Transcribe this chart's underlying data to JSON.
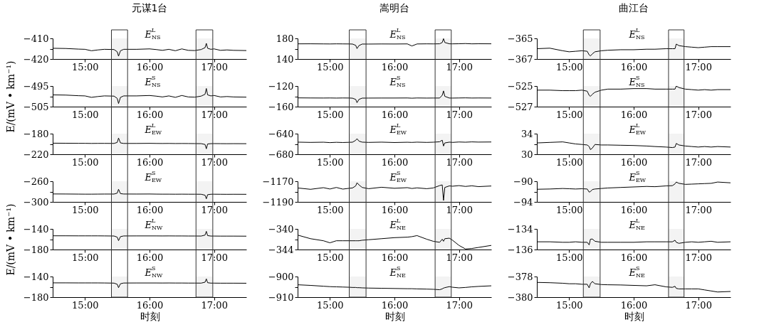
{
  "chart_data": [
    {
      "type": "line",
      "title": "元谋1台",
      "x": [
        14.5,
        14.7,
        14.9,
        15.0,
        15.1,
        15.2,
        15.3,
        15.45,
        15.5,
        15.52,
        15.55,
        15.6,
        15.8,
        16.0,
        16.1,
        16.2,
        16.3,
        16.4,
        16.5,
        16.6,
        16.7,
        16.8,
        16.86,
        16.88,
        16.9,
        16.95,
        17.0,
        17.1,
        17.2,
        17.3,
        17.5
      ],
      "xlim": [
        14.5,
        17.5
      ],
      "xticks": [
        {
          "value": 15,
          "label": "15:00"
        },
        {
          "value": 16,
          "label": "16:00"
        },
        {
          "value": 17,
          "label": "17:00"
        }
      ],
      "ylim": [
        -420,
        -410
      ],
      "yticks": [
        -420,
        {
          "value": -415,
          "label": null
        },
        -410
      ],
      "bands": [
        {
          "axis": "x",
          "from": 15.41,
          "to": 15.66
        },
        {
          "axis": "x",
          "from": 16.72,
          "to": 16.98
        }
      ],
      "series": [
        {
          "name": "E$^{L}$$_{NS}$",
          "color": "#000000",
          "values": [
            -414.8,
            -414.9,
            -415.2,
            -415.3,
            -416.0,
            -415.6,
            -415.3,
            -415.4,
            -416.5,
            -418.6,
            -416.0,
            -415.3,
            -415.3,
            -415.1,
            -415.4,
            -415.8,
            -415.3,
            -416.0,
            -415.1,
            -415.8,
            -415.9,
            -415.4,
            -414.5,
            -412.4,
            -414.8,
            -415.3,
            -415.1,
            -415.8,
            -415.6,
            -415.8,
            -415.9
          ]
        }
      ]
    },
    {
      "type": "line",
      "ylabel": "E/(mV • km⁻¹)",
      "x": [
        14.5,
        14.7,
        14.9,
        15.0,
        15.1,
        15.2,
        15.3,
        15.45,
        15.5,
        15.52,
        15.55,
        15.6,
        15.8,
        16.0,
        16.1,
        16.2,
        16.3,
        16.4,
        16.5,
        16.6,
        16.7,
        16.8,
        16.86,
        16.88,
        16.9,
        16.95,
        17.0,
        17.1,
        17.2,
        17.3,
        17.5
      ],
      "xlim": [
        14.5,
        17.5
      ],
      "xticks": [
        {
          "value": 15,
          "label": "15:00"
        },
        {
          "value": 16,
          "label": "16:00"
        },
        {
          "value": 17,
          "label": "17:00"
        }
      ],
      "ylim": [
        -505,
        -495
      ],
      "yticks": [
        -505,
        {
          "value": -500,
          "label": null
        },
        -495
      ],
      "bands": [
        {
          "axis": "x",
          "from": 15.41,
          "to": 15.66
        },
        {
          "axis": "x",
          "from": 16.72,
          "to": 16.98
        }
      ],
      "series": [
        {
          "name": "E$^{S}$$_{NS}$",
          "color": "#000000",
          "values": [
            -499.3,
            -499.4,
            -499.7,
            -499.8,
            -500.5,
            -500.1,
            -499.8,
            -499.9,
            -501.0,
            -503.5,
            -500.5,
            -499.8,
            -499.8,
            -499.6,
            -499.9,
            -500.3,
            -499.8,
            -500.5,
            -499.6,
            -500.3,
            -500.4,
            -499.9,
            -499.0,
            -496.2,
            -499.3,
            -499.8,
            -499.6,
            -500.3,
            -500.1,
            -500.3,
            -500.4
          ]
        }
      ]
    },
    {
      "type": "line",
      "x": [
        14.5,
        14.7,
        14.9,
        15.0,
        15.1,
        15.2,
        15.3,
        15.45,
        15.5,
        15.52,
        15.55,
        15.6,
        15.8,
        16.0,
        16.1,
        16.2,
        16.3,
        16.4,
        16.5,
        16.6,
        16.7,
        16.8,
        16.86,
        16.88,
        16.9,
        16.95,
        17.0,
        17.1,
        17.2,
        17.3,
        17.5
      ],
      "xlim": [
        14.5,
        17.5
      ],
      "xticks": [
        {
          "value": 15,
          "label": "15:00"
        },
        {
          "value": 16,
          "label": "16:00"
        },
        {
          "value": 17,
          "label": "17:00"
        }
      ],
      "ylim": [
        -220,
        -180
      ],
      "yticks": [
        -220,
        {
          "value": -200,
          "label": null
        },
        -180
      ],
      "bands": [
        {
          "axis": "x",
          "from": 15.41,
          "to": 15.66
        },
        {
          "axis": "x",
          "from": 16.72,
          "to": 16.98
        }
      ],
      "series": [
        {
          "name": "E$^{L}$$_{EW}$",
          "color": "#000000",
          "values": [
            -198.5,
            -198.6,
            -198.8,
            -198.8,
            -199.0,
            -198.9,
            -198.9,
            -199.0,
            -197.0,
            -188.5,
            -198.0,
            -199.0,
            -199.0,
            -198.8,
            -199.0,
            -199.1,
            -199.0,
            -199.2,
            -199.1,
            -199.2,
            -199.3,
            -199.4,
            -201.0,
            -209.4,
            -200.0,
            -199.4,
            -199.3,
            -199.4,
            -199.5,
            -199.4,
            -199.5
          ]
        }
      ]
    },
    {
      "type": "line",
      "x": [
        14.5,
        14.7,
        14.9,
        15.0,
        15.1,
        15.2,
        15.3,
        15.45,
        15.5,
        15.52,
        15.55,
        15.6,
        15.8,
        16.0,
        16.1,
        16.2,
        16.3,
        16.4,
        16.5,
        16.6,
        16.7,
        16.8,
        16.86,
        16.88,
        16.9,
        16.95,
        17.0,
        17.1,
        17.2,
        17.3,
        17.5
      ],
      "xlim": [
        14.5,
        17.5
      ],
      "xticks": [
        {
          "value": 15,
          "label": "15:00"
        },
        {
          "value": 16,
          "label": "16:00"
        },
        {
          "value": 17,
          "label": "17:00"
        }
      ],
      "ylim": [
        -300,
        -260
      ],
      "yticks": [
        -300,
        {
          "value": -280,
          "label": null
        },
        -260
      ],
      "bands": [
        {
          "axis": "x",
          "from": 15.41,
          "to": 15.66
        },
        {
          "axis": "x",
          "from": 16.72,
          "to": 16.98
        }
      ],
      "series": [
        {
          "name": "E$^{S}$$_{EW}$",
          "color": "#000000",
          "values": [
            -284.6,
            -284.7,
            -284.9,
            -285.0,
            -285.0,
            -284.9,
            -284.8,
            -284.8,
            -283.0,
            -275.5,
            -284.0,
            -284.7,
            -284.8,
            -284.7,
            -284.9,
            -285.0,
            -285.0,
            -285.1,
            -285.0,
            -285.1,
            -285.1,
            -285.2,
            -287.0,
            -294.0,
            -286.0,
            -285.2,
            -285.1,
            -285.2,
            -285.3,
            -285.2,
            -285.3
          ]
        }
      ]
    },
    {
      "type": "line",
      "ylabel": "E/(mV • km⁻¹)",
      "x": [
        14.5,
        14.7,
        14.9,
        15.0,
        15.1,
        15.2,
        15.3,
        15.45,
        15.5,
        15.52,
        15.55,
        15.6,
        15.8,
        16.0,
        16.1,
        16.2,
        16.3,
        16.4,
        16.5,
        16.6,
        16.7,
        16.8,
        16.86,
        16.88,
        16.9,
        16.95,
        17.0,
        17.1,
        17.2,
        17.3,
        17.5
      ],
      "xlim": [
        14.5,
        17.5
      ],
      "xticks": [
        {
          "value": 15,
          "label": "15:00"
        },
        {
          "value": 16,
          "label": "16:00"
        },
        {
          "value": 17,
          "label": "17:00"
        }
      ],
      "ylim": [
        -180,
        -140
      ],
      "yticks": [
        -180,
        {
          "value": -160,
          "label": null
        },
        -140
      ],
      "bands": [
        {
          "axis": "x",
          "from": 15.41,
          "to": 15.66
        },
        {
          "axis": "x",
          "from": 16.72,
          "to": 16.98
        }
      ],
      "series": [
        {
          "name": "E$^{L}$$_{NW}$",
          "color": "#000000",
          "values": [
            -153.4,
            -153.4,
            -153.5,
            -153.5,
            -153.5,
            -153.5,
            -153.6,
            -153.8,
            -156.0,
            -162.8,
            -155.0,
            -153.7,
            -153.6,
            -153.6,
            -153.6,
            -153.7,
            -153.6,
            -153.7,
            -153.7,
            -153.8,
            -153.8,
            -153.9,
            -152.0,
            -144.7,
            -153.0,
            -153.9,
            -153.9,
            -154.0,
            -154.0,
            -154.0,
            -154.1
          ]
        }
      ]
    },
    {
      "type": "line",
      "xlabel": "时刻",
      "x": [
        14.5,
        14.7,
        14.9,
        15.0,
        15.1,
        15.2,
        15.3,
        15.45,
        15.5,
        15.52,
        15.55,
        15.6,
        15.8,
        16.0,
        16.1,
        16.2,
        16.3,
        16.4,
        16.5,
        16.6,
        16.7,
        16.8,
        16.86,
        16.88,
        16.9,
        16.95,
        17.0,
        17.1,
        17.2,
        17.3,
        17.5
      ],
      "xlim": [
        14.5,
        17.5
      ],
      "xticks": [
        {
          "value": 15,
          "label": "15:00"
        },
        {
          "value": 16,
          "label": "16:00"
        },
        {
          "value": 17,
          "label": "17:00"
        }
      ],
      "ylim": [
        -180,
        -140
      ],
      "yticks": [
        -180,
        {
          "value": -160,
          "label": null
        },
        -140
      ],
      "bands": [
        {
          "axis": "x",
          "from": 15.41,
          "to": 15.66
        },
        {
          "axis": "x",
          "from": 16.72,
          "to": 16.98
        }
      ],
      "series": [
        {
          "name": "E$^{S}$$_{NW}$",
          "color": "#000000",
          "values": [
            -152.3,
            -152.3,
            -152.4,
            -152.4,
            -152.4,
            -152.4,
            -152.5,
            -152.8,
            -155.0,
            -161.6,
            -154.0,
            -152.6,
            -152.5,
            -152.5,
            -152.5,
            -152.6,
            -152.5,
            -152.6,
            -152.6,
            -152.7,
            -152.7,
            -152.8,
            -151.0,
            -144.6,
            -152.0,
            -152.8,
            -152.8,
            -152.9,
            -152.9,
            -152.9,
            -153.0
          ]
        }
      ]
    },
    {
      "type": "line",
      "title": "嵩明台",
      "x": [
        14.5,
        14.7,
        14.9,
        15.0,
        15.1,
        15.2,
        15.3,
        15.35,
        15.4,
        15.42,
        15.45,
        15.5,
        15.6,
        15.8,
        16.0,
        16.2,
        16.27,
        16.35,
        16.5,
        16.6,
        16.7,
        16.74,
        16.76,
        16.78,
        16.85,
        16.9,
        17.0,
        17.1,
        17.2,
        17.3,
        17.5
      ],
      "xlim": [
        14.5,
        17.5
      ],
      "xticks": [
        {
          "value": 15,
          "label": "15:00"
        },
        {
          "value": 16,
          "label": "16:00"
        },
        {
          "value": 17,
          "label": "17:00"
        }
      ],
      "ylim": [
        140,
        180
      ],
      "yticks": [
        140,
        {
          "value": 160,
          "label": null
        },
        180
      ],
      "bands": [
        {
          "axis": "x",
          "from": 15.3,
          "to": 15.56
        },
        {
          "axis": "x",
          "from": 16.63,
          "to": 16.88
        }
      ],
      "series": [
        {
          "name": "E$^{L}$$_{NS}$",
          "color": "#000000",
          "values": [
            169.4,
            169.5,
            169.3,
            169.2,
            169.4,
            169.3,
            169.2,
            169.0,
            166.5,
            160.2,
            166.0,
            169.0,
            169.0,
            169.2,
            169.1,
            169.3,
            165.3,
            169.2,
            169.4,
            169.3,
            169.5,
            172.0,
            179.5,
            172.0,
            169.5,
            169.4,
            169.6,
            170.0,
            169.4,
            169.6,
            169.5
          ]
        }
      ]
    },
    {
      "type": "line",
      "x": [
        14.5,
        14.7,
        14.9,
        15.0,
        15.1,
        15.2,
        15.3,
        15.35,
        15.4,
        15.42,
        15.45,
        15.5,
        15.6,
        15.8,
        16.0,
        16.2,
        16.27,
        16.35,
        16.5,
        16.6,
        16.7,
        16.74,
        16.76,
        16.78,
        16.85,
        16.9,
        17.0,
        17.1,
        17.2,
        17.3,
        17.5
      ],
      "xlim": [
        14.5,
        17.5
      ],
      "xticks": [
        {
          "value": 15,
          "label": "15:00"
        },
        {
          "value": 16,
          "label": "16:00"
        },
        {
          "value": 17,
          "label": "17:00"
        }
      ],
      "ylim": [
        -160,
        -120
      ],
      "yticks": [
        -160,
        {
          "value": -140,
          "label": null
        },
        -120
      ],
      "bands": [
        {
          "axis": "x",
          "from": 15.3,
          "to": 15.56
        },
        {
          "axis": "x",
          "from": 16.63,
          "to": 16.88
        }
      ],
      "series": [
        {
          "name": "E$^{S}$$_{NS}$",
          "color": "#000000",
          "values": [
            -143.0,
            -143.2,
            -143.3,
            -143.2,
            -143.4,
            -143.2,
            -143.3,
            -143.6,
            -146.0,
            -152.3,
            -146.0,
            -143.5,
            -143.4,
            -143.3,
            -143.3,
            -143.2,
            -143.6,
            -143.2,
            -143.4,
            -143.3,
            -143.3,
            -138.0,
            -129.5,
            -140.0,
            -143.3,
            -143.4,
            -143.2,
            -143.0,
            -143.3,
            -143.2,
            -143.3
          ]
        }
      ]
    },
    {
      "type": "line",
      "x": [
        14.5,
        14.7,
        14.9,
        15.0,
        15.1,
        15.2,
        15.3,
        15.35,
        15.4,
        15.42,
        15.45,
        15.5,
        15.6,
        15.8,
        16.0,
        16.2,
        16.27,
        16.35,
        16.5,
        16.6,
        16.7,
        16.74,
        16.76,
        16.78,
        16.85,
        16.9,
        17.0,
        17.1,
        17.2,
        17.3,
        17.5
      ],
      "xlim": [
        14.5,
        17.5
      ],
      "xticks": [
        {
          "value": 15,
          "label": "15:00"
        },
        {
          "value": 16,
          "label": "16:00"
        },
        {
          "value": 17,
          "label": "17:00"
        }
      ],
      "ylim": [
        -680,
        -640
      ],
      "yticks": [
        -680,
        {
          "value": -660,
          "label": null
        },
        -640
      ],
      "bands": [
        {
          "axis": "x",
          "from": 15.3,
          "to": 15.56
        },
        {
          "axis": "x",
          "from": 16.63,
          "to": 16.88
        }
      ],
      "series": [
        {
          "name": "E$^{L}$$_{EW}$",
          "color": "#000000",
          "values": [
            -656.5,
            -657.0,
            -656.6,
            -657.4,
            -656.8,
            -657.2,
            -656.8,
            -656.6,
            -653.0,
            -649.7,
            -654.5,
            -656.5,
            -657.0,
            -656.5,
            -657.2,
            -656.7,
            -657.0,
            -656.5,
            -657.0,
            -656.6,
            -655.8,
            -652.6,
            -664.0,
            -658.0,
            -656.5,
            -657.0,
            -656.2,
            -656.6,
            -656.0,
            -656.4,
            -656.2
          ]
        }
      ]
    },
    {
      "type": "line",
      "x": [
        14.5,
        14.7,
        14.9,
        15.0,
        15.1,
        15.2,
        15.3,
        15.35,
        15.4,
        15.42,
        15.45,
        15.5,
        15.6,
        15.8,
        16.0,
        16.2,
        16.27,
        16.35,
        16.5,
        16.6,
        16.7,
        16.74,
        16.76,
        16.78,
        16.85,
        16.9,
        17.0,
        17.1,
        17.2,
        17.3,
        17.5
      ],
      "xlim": [
        14.5,
        17.5
      ],
      "xticks": [
        {
          "value": 15,
          "label": "15:00"
        },
        {
          "value": 16,
          "label": "16:00"
        },
        {
          "value": 17,
          "label": "17:00"
        }
      ],
      "ylim": [
        -1190,
        -1170
      ],
      "yticks": [
        -1190,
        {
          "value": -1180,
          "label": null
        },
        -1170
      ],
      "bands": [
        {
          "axis": "x",
          "from": 15.3,
          "to": 15.56
        },
        {
          "axis": "x",
          "from": 16.63,
          "to": 16.88
        }
      ],
      "series": [
        {
          "name": "E$^{S}$$_{EW}$",
          "color": "#000000",
          "values": [
            -1176.5,
            -1177.8,
            -1176.2,
            -1177.5,
            -1176.0,
            -1177.6,
            -1176.8,
            -1176.5,
            -1174.5,
            -1171.4,
            -1173.5,
            -1176.0,
            -1177.2,
            -1175.8,
            -1176.8,
            -1176.2,
            -1177.0,
            -1176.4,
            -1177.2,
            -1176.5,
            -1174.2,
            -1173.5,
            -1188.6,
            -1176.0,
            -1174.5,
            -1174.8,
            -1174.2,
            -1175.0,
            -1174.4,
            -1175.2,
            -1174.6
          ]
        }
      ]
    },
    {
      "type": "line",
      "x": [
        14.5,
        14.7,
        14.9,
        15.0,
        15.1,
        15.2,
        15.3,
        15.35,
        15.4,
        15.42,
        15.45,
        15.5,
        15.6,
        15.8,
        16.0,
        16.2,
        16.27,
        16.35,
        16.5,
        16.6,
        16.7,
        16.74,
        16.76,
        16.78,
        16.85,
        16.9,
        17.0,
        17.1,
        17.2,
        17.3,
        17.5
      ],
      "xlim": [
        14.5,
        17.5
      ],
      "xticks": [
        {
          "value": 15,
          "label": "15:00"
        },
        {
          "value": 16,
          "label": "16:00"
        },
        {
          "value": 17,
          "label": "17:00"
        }
      ],
      "ylim": [
        -344,
        -340
      ],
      "yticks": [
        -344,
        {
          "value": -342,
          "label": null
        },
        -340
      ],
      "bands": [
        {
          "axis": "x",
          "from": 15.3,
          "to": 15.56
        },
        {
          "axis": "x",
          "from": 16.63,
          "to": 16.88
        }
      ],
      "series": [
        {
          "name": "E$^{L}$$_{NE}$",
          "color": "#000000",
          "values": [
            -341.2,
            -341.9,
            -342.3,
            -342.7,
            -342.3,
            -342.3,
            -342.3,
            -342.3,
            -342.3,
            -342.3,
            -342.3,
            -342.2,
            -342.1,
            -341.9,
            -341.7,
            -341.6,
            -341.5,
            -341.3,
            -342.0,
            -342.4,
            -342.6,
            -342.0,
            -342.4,
            -341.9,
            -341.8,
            -342.2,
            -343.2,
            -343.9,
            -343.8,
            -343.6,
            -343.2
          ]
        }
      ]
    },
    {
      "type": "line",
      "xlabel": "时刻",
      "x": [
        14.5,
        14.7,
        14.9,
        15.0,
        15.1,
        15.2,
        15.3,
        15.35,
        15.4,
        15.42,
        15.45,
        15.5,
        15.6,
        15.8,
        16.0,
        16.2,
        16.27,
        16.35,
        16.5,
        16.6,
        16.7,
        16.74,
        16.76,
        16.78,
        16.85,
        16.9,
        17.0,
        17.1,
        17.2,
        17.3,
        17.5
      ],
      "xlim": [
        14.5,
        17.5
      ],
      "xticks": [
        {
          "value": 15,
          "label": "15:00"
        },
        {
          "value": 16,
          "label": "16:00"
        },
        {
          "value": 17,
          "label": "17:00"
        }
      ],
      "ylim": [
        -910,
        -900
      ],
      "yticks": [
        -910,
        {
          "value": -905,
          "label": null
        },
        -900
      ],
      "bands": [
        {
          "axis": "x",
          "from": 15.3,
          "to": 15.56
        },
        {
          "axis": "x",
          "from": 16.63,
          "to": 16.88
        }
      ],
      "series": [
        {
          "name": "E$^{S}$$_{NE}$",
          "color": "#000000",
          "values": [
            -904.0,
            -904.3,
            -904.7,
            -904.9,
            -905.0,
            -905.1,
            -905.2,
            -905.3,
            -905.3,
            -905.4,
            -905.4,
            -905.5,
            -905.6,
            -905.7,
            -905.8,
            -905.9,
            -905.9,
            -906.0,
            -906.1,
            -906.2,
            -906.4,
            -906.0,
            -905.6,
            -905.4,
            -904.9,
            -905.2,
            -905.5,
            -905.3,
            -905.0,
            -904.8,
            -904.5
          ]
        }
      ]
    },
    {
      "type": "line",
      "title": "曲江台",
      "x": [
        14.5,
        14.7,
        14.9,
        15.0,
        15.1,
        15.2,
        15.28,
        15.31,
        15.33,
        15.36,
        15.4,
        15.5,
        15.6,
        15.8,
        16.0,
        16.2,
        16.33,
        16.5,
        16.6,
        16.64,
        16.66,
        16.7,
        16.8,
        16.9,
        17.0,
        17.1,
        17.2,
        17.3,
        17.5
      ],
      "xlim": [
        14.5,
        17.5
      ],
      "xticks": [
        {
          "value": 15,
          "label": "15:00"
        },
        {
          "value": 16,
          "label": "16:00"
        },
        {
          "value": 17,
          "label": "17:00"
        }
      ],
      "ylim": [
        -367,
        -365
      ],
      "yticks": [
        -367,
        -365
      ],
      "bands": [
        {
          "axis": "x",
          "from": 15.22,
          "to": 15.48
        },
        {
          "axis": "x",
          "from": 16.54,
          "to": 16.78
        }
      ],
      "series": [
        {
          "name": "E$^{L}$$_{NS}$",
          "color": "#000000",
          "values": [
            -366.0,
            -365.95,
            -366.2,
            -366.3,
            -366.25,
            -366.2,
            -366.25,
            -366.6,
            -366.7,
            -366.5,
            -366.3,
            -366.2,
            -366.15,
            -366.1,
            -366.1,
            -366.05,
            -366.05,
            -366.0,
            -366.0,
            -366.0,
            -365.55,
            -365.7,
            -365.8,
            -365.85,
            -365.9,
            -365.85,
            -365.8,
            -365.8,
            -365.8
          ]
        }
      ]
    },
    {
      "type": "line",
      "x": [
        14.5,
        14.7,
        14.9,
        15.0,
        15.1,
        15.2,
        15.28,
        15.31,
        15.33,
        15.36,
        15.4,
        15.5,
        15.6,
        15.8,
        16.0,
        16.2,
        16.33,
        16.5,
        16.6,
        16.64,
        16.66,
        16.7,
        16.8,
        16.9,
        17.0,
        17.1,
        17.2,
        17.3,
        17.5
      ],
      "xlim": [
        14.5,
        17.5
      ],
      "xticks": [
        {
          "value": 15,
          "label": "15:00"
        },
        {
          "value": 16,
          "label": "16:00"
        },
        {
          "value": 17,
          "label": "17:00"
        }
      ],
      "ylim": [
        -527,
        -525
      ],
      "yticks": [
        -527,
        -525
      ],
      "bands": [
        {
          "axis": "x",
          "from": 15.22,
          "to": 15.48
        },
        {
          "axis": "x",
          "from": 16.54,
          "to": 16.78
        }
      ],
      "series": [
        {
          "name": "E$^{S}$$_{NS}$",
          "color": "#000000",
          "values": [
            -525.4,
            -525.4,
            -525.45,
            -525.45,
            -525.45,
            -525.4,
            -525.5,
            -525.9,
            -526.0,
            -525.8,
            -525.6,
            -525.4,
            -525.3,
            -525.3,
            -525.25,
            -525.25,
            -525.3,
            -525.3,
            -525.3,
            -525.3,
            -525.0,
            -525.15,
            -525.3,
            -525.35,
            -525.4,
            -525.35,
            -525.4,
            -525.35,
            -525.35
          ]
        }
      ]
    },
    {
      "type": "line",
      "x": [
        14.5,
        14.7,
        14.9,
        15.0,
        15.1,
        15.2,
        15.28,
        15.31,
        15.33,
        15.36,
        15.4,
        15.5,
        15.6,
        15.8,
        16.0,
        16.2,
        16.33,
        16.5,
        16.6,
        16.64,
        16.66,
        16.7,
        16.8,
        16.9,
        17.0,
        17.1,
        17.2,
        17.3,
        17.5
      ],
      "xlim": [
        14.5,
        17.5
      ],
      "xticks": [
        {
          "value": 15,
          "label": "15:00"
        },
        {
          "value": 16,
          "label": "16:00"
        },
        {
          "value": 17,
          "label": "17:00"
        }
      ],
      "ylim": [
        30,
        34
      ],
      "yticks": [
        30,
        {
          "value": 32,
          "label": null
        },
        34
      ],
      "bands": [
        {
          "axis": "x",
          "from": 15.22,
          "to": 15.48
        },
        {
          "axis": "x",
          "from": 16.54,
          "to": 16.78
        }
      ],
      "series": [
        {
          "name": "E$^{L}$$_{EW}$",
          "color": "#000000",
          "values": [
            32.2,
            32.3,
            32.4,
            32.2,
            32.0,
            31.9,
            31.8,
            31.5,
            30.9,
            31.2,
            31.9,
            31.8,
            31.8,
            31.75,
            31.7,
            31.6,
            31.5,
            31.4,
            31.3,
            31.4,
            32.1,
            31.8,
            31.6,
            31.5,
            31.4,
            31.5,
            31.4,
            31.5,
            31.4
          ]
        }
      ]
    },
    {
      "type": "line",
      "x": [
        14.5,
        14.7,
        14.9,
        15.0,
        15.1,
        15.2,
        15.28,
        15.31,
        15.33,
        15.36,
        15.4,
        15.5,
        15.6,
        15.8,
        16.0,
        16.2,
        16.33,
        16.5,
        16.6,
        16.64,
        16.66,
        16.7,
        16.8,
        16.9,
        17.0,
        17.1,
        17.2,
        17.3,
        17.5
      ],
      "xlim": [
        14.5,
        17.5
      ],
      "xticks": [
        {
          "value": 15,
          "label": "15:00"
        },
        {
          "value": 16,
          "label": "16:00"
        },
        {
          "value": 17,
          "label": "17:00"
        }
      ],
      "ylim": [
        -94,
        -90
      ],
      "yticks": [
        -94,
        {
          "value": -92,
          "label": null
        },
        -90
      ],
      "bands": [
        {
          "axis": "x",
          "from": 15.22,
          "to": 15.48
        },
        {
          "axis": "x",
          "from": 16.54,
          "to": 16.78
        }
      ],
      "series": [
        {
          "name": "E$^{S}$$_{EW}$",
          "color": "#000000",
          "values": [
            -91.55,
            -91.5,
            -91.4,
            -91.45,
            -91.5,
            -91.45,
            -91.5,
            -92.1,
            -92.0,
            -91.6,
            -91.5,
            -91.4,
            -91.3,
            -91.2,
            -91.1,
            -91.0,
            -91.05,
            -90.9,
            -90.85,
            -90.5,
            -90.15,
            -90.4,
            -90.6,
            -90.55,
            -90.5,
            -90.45,
            -90.4,
            -90.15,
            -90.3
          ]
        }
      ]
    },
    {
      "type": "line",
      "x": [
        14.5,
        14.7,
        14.9,
        15.0,
        15.1,
        15.2,
        15.28,
        15.31,
        15.33,
        15.36,
        15.4,
        15.5,
        15.6,
        15.8,
        16.0,
        16.2,
        16.33,
        16.5,
        16.6,
        16.64,
        16.66,
        16.7,
        16.8,
        16.9,
        17.0,
        17.1,
        17.2,
        17.3,
        17.5
      ],
      "xlim": [
        14.5,
        17.5
      ],
      "xticks": [
        {
          "value": 15,
          "label": "15:00"
        },
        {
          "value": 16,
          "label": "16:00"
        },
        {
          "value": 17,
          "label": "17:00"
        }
      ],
      "ylim": [
        -136,
        -134
      ],
      "yticks": [
        -136,
        -134
      ],
      "bands": [
        {
          "axis": "x",
          "from": 15.22,
          "to": 15.48
        },
        {
          "axis": "x",
          "from": 16.54,
          "to": 16.78
        }
      ],
      "series": [
        {
          "name": "E$^{L}$$_{NE}$",
          "color": "#000000",
          "values": [
            -135.25,
            -135.25,
            -135.3,
            -135.3,
            -135.25,
            -135.3,
            -135.3,
            -135.55,
            -135.0,
            -134.98,
            -135.2,
            -135.3,
            -135.3,
            -135.3,
            -135.3,
            -135.25,
            -135.25,
            -135.25,
            -135.25,
            -135.1,
            -135.3,
            -135.4,
            -135.3,
            -135.25,
            -135.3,
            -135.25,
            -135.2,
            -135.3,
            -135.25
          ]
        }
      ]
    },
    {
      "type": "line",
      "xlabel": "时刻",
      "x": [
        14.5,
        14.7,
        14.9,
        15.0,
        15.1,
        15.2,
        15.28,
        15.31,
        15.33,
        15.36,
        15.4,
        15.5,
        15.6,
        15.8,
        16.0,
        16.2,
        16.33,
        16.5,
        16.6,
        16.64,
        16.66,
        16.7,
        16.8,
        16.9,
        17.0,
        17.1,
        17.2,
        17.3,
        17.5
      ],
      "xlim": [
        14.5,
        17.5
      ],
      "xticks": [
        {
          "value": 15,
          "label": "15:00"
        },
        {
          "value": 16,
          "label": "16:00"
        },
        {
          "value": 17,
          "label": "17:00"
        }
      ],
      "ylim": [
        -380,
        -378
      ],
      "yticks": [
        -380,
        -378
      ],
      "bands": [
        {
          "axis": "x",
          "from": 15.22,
          "to": 15.48
        },
        {
          "axis": "x",
          "from": 16.54,
          "to": 16.78
        }
      ],
      "series": [
        {
          "name": "E$^{S}$$_{NE}$",
          "color": "#000000",
          "values": [
            -378.57,
            -378.6,
            -378.65,
            -378.7,
            -378.7,
            -378.75,
            -378.75,
            -379.1,
            -378.7,
            -378.48,
            -378.7,
            -378.78,
            -378.8,
            -378.82,
            -378.86,
            -378.9,
            -378.8,
            -379.0,
            -379.05,
            -378.95,
            -379.15,
            -379.2,
            -379.2,
            -379.2,
            -379.2,
            -379.3,
            -379.4,
            -379.5,
            -379.45
          ]
        }
      ]
    }
  ]
}
